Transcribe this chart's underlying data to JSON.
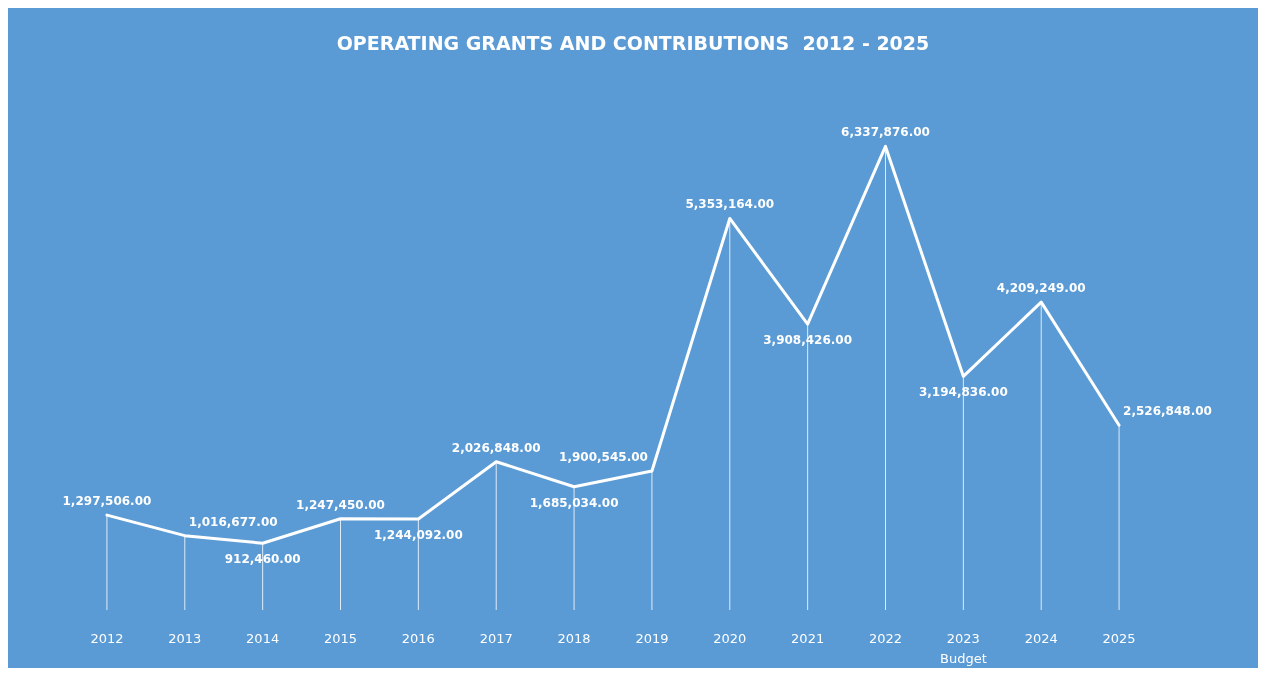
{
  "chart_data": {
    "type": "line",
    "title": "OPERATING GRANTS AND CONTRIBUTIONS  2012 - 2025",
    "categories": [
      "2012",
      "2013",
      "2014",
      "2015",
      "2016",
      "2017",
      "2018",
      "2019",
      "2020",
      "2021",
      "2022",
      "2023\nBudget",
      "2024",
      "2025"
    ],
    "series": [
      {
        "type": "bar",
        "color": "#ffffff",
        "values": [
          1297506,
          1016677,
          912460,
          1247450,
          1244092,
          2026848,
          1685034,
          1900545,
          5353164,
          3908426,
          6337876,
          3194836,
          4209249,
          2526848
        ]
      },
      {
        "color": "#ffffff",
        "values": [
          1297506,
          1016677,
          912460,
          1247450,
          1244092,
          2026848,
          1685034,
          1900545,
          5353164,
          3908426,
          6337876,
          3194836,
          4209249,
          2526848
        ],
        "value_labels": [
          "1,297,506.00",
          "1,016,677.00",
          "912,460.00",
          "1,247,450.00",
          "1,244,092.00",
          "2,026,848.00",
          "1,685,034.00",
          "1,900,545.00",
          "5,353,164.00",
          "3,908,426.00",
          "6,337,876.00",
          "3,194,836.00",
          "4,209,249.00",
          "2,526,848.00"
        ]
      }
    ],
    "grid": false,
    "marker": "none",
    "line_style": "solid"
  }
}
